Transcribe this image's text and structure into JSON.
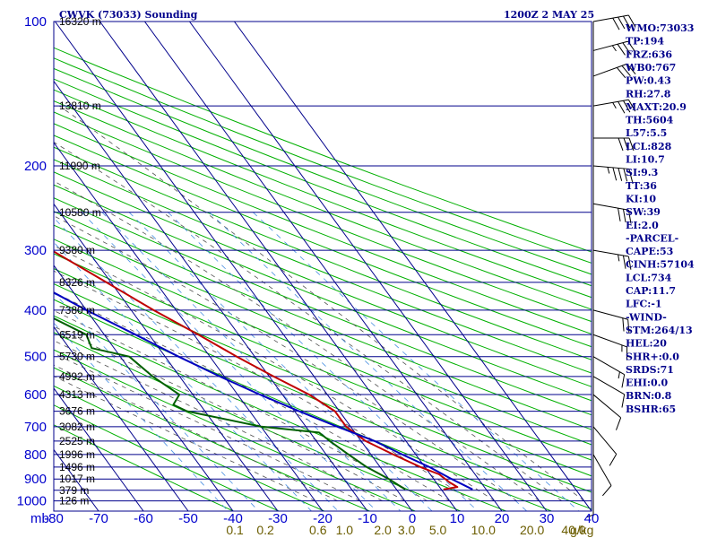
{
  "header": {
    "station": "CWVK (73033) Sounding",
    "time": "1200Z  2 MAY 25"
  },
  "colors": {
    "frame": "#00008b",
    "isotherm": "#00008b",
    "isobar": "#00008b",
    "dry_adiabat": "#00b000",
    "moist_adiabat": "#505050",
    "mixing_ratio": "#4a90e2",
    "temperature": "#c00000",
    "dewpoint": "#006000",
    "parcel": "#0000c0",
    "wind": "#000000"
  },
  "chart_data": {
    "type": "line",
    "xlabel": "",
    "ylabel": "",
    "pressure_unit_label": "mb",
    "mixing_unit_label": "g/kg",
    "x_ticks": [
      -80,
      -70,
      -60,
      -50,
      -40,
      -30,
      -20,
      -10,
      0,
      10,
      20,
      30,
      40
    ],
    "x_tick_labels": [
      "-80",
      "-70",
      "-60",
      "-50",
      "-40",
      "-30",
      "-20",
      "-10",
      "0",
      "10",
      "20",
      "30",
      "40"
    ],
    "pressure_levels": [
      100,
      200,
      300,
      400,
      500,
      600,
      700,
      800,
      900,
      1000
    ],
    "pressure_labels": [
      "100",
      "200",
      "300",
      "400",
      "500",
      "600",
      "700",
      "800",
      "900",
      "1000"
    ],
    "height_levels": [
      {
        "p": 100,
        "label": "16320 m"
      },
      {
        "p": 150,
        "label": "13810 m"
      },
      {
        "p": 200,
        "label": "11990 m"
      },
      {
        "p": 250,
        "label": "10580 m"
      },
      {
        "p": 300,
        "label": "9380 m"
      },
      {
        "p": 350,
        "label": "8326 m"
      },
      {
        "p": 400,
        "label": "7380 m"
      },
      {
        "p": 450,
        "label": "6519 m"
      },
      {
        "p": 500,
        "label": "5730 m"
      },
      {
        "p": 550,
        "label": "4992 m"
      },
      {
        "p": 600,
        "label": "4313 m"
      },
      {
        "p": 650,
        "label": "3676 m"
      },
      {
        "p": 700,
        "label": "3082 m"
      },
      {
        "p": 750,
        "label": "2525 m"
      },
      {
        "p": 800,
        "label": "1996 m"
      },
      {
        "p": 850,
        "label": "1496 m"
      },
      {
        "p": 900,
        "label": "1017 m"
      },
      {
        "p": 950,
        "label": "379 m"
      },
      {
        "p": 1000,
        "label": "126 m"
      }
    ],
    "mixing_ratio_labels": [
      "0.1",
      "0.2",
      "0.6",
      "1.0",
      "2.0",
      "3.0",
      "5.0",
      "10.0",
      "20.0",
      "40.0"
    ],
    "mixing_ratio_values": [
      0.1,
      0.2,
      0.6,
      1.0,
      2.0,
      3.0,
      5.0,
      10.0,
      20.0,
      40.0
    ],
    "series": [
      {
        "key": "temperature",
        "points": [
          [
            946,
            10.5
          ],
          [
            935,
            14
          ],
          [
            915,
            13
          ],
          [
            880,
            12
          ],
          [
            850,
            9
          ],
          [
            800,
            5
          ],
          [
            750,
            1
          ],
          [
            700,
            -1
          ],
          [
            670,
            -1
          ],
          [
            650,
            -1
          ],
          [
            600,
            -4
          ],
          [
            550,
            -9
          ],
          [
            500,
            -14
          ],
          [
            450,
            -19
          ],
          [
            400,
            -25
          ],
          [
            350,
            -31
          ],
          [
            300,
            -38
          ],
          [
            250,
            -47
          ],
          [
            200,
            -54
          ],
          [
            190,
            -55
          ],
          [
            175,
            -52
          ],
          [
            160,
            -50
          ],
          [
            140,
            -53
          ],
          [
            120,
            -57
          ],
          [
            100,
            -58
          ]
        ]
      },
      {
        "key": "dewpoint",
        "points": [
          [
            946,
            2
          ],
          [
            935,
            1.5
          ],
          [
            900,
            0
          ],
          [
            850,
            -3
          ],
          [
            800,
            -5
          ],
          [
            750,
            -7
          ],
          [
            720,
            -8
          ],
          [
            700,
            -20
          ],
          [
            650,
            -34
          ],
          [
            630,
            -36
          ],
          [
            600,
            -33
          ],
          [
            550,
            -36
          ],
          [
            500,
            -38
          ],
          [
            480,
            -45
          ],
          [
            450,
            -44
          ],
          [
            400,
            -51
          ],
          [
            350,
            -53
          ],
          [
            300,
            -57
          ],
          [
            280,
            -57
          ],
          [
            250,
            -63
          ],
          [
            220,
            -65
          ],
          [
            200,
            -68
          ],
          [
            185,
            -72
          ],
          [
            180,
            -75
          ]
        ]
      },
      {
        "key": "parcel",
        "points": [
          [
            946,
            17
          ],
          [
            900,
            14
          ],
          [
            850,
            11
          ],
          [
            800,
            7
          ],
          [
            750,
            3
          ],
          [
            700,
            -3
          ],
          [
            650,
            -9
          ],
          [
            600,
            -15
          ],
          [
            550,
            -21
          ],
          [
            500,
            -27
          ],
          [
            450,
            -33
          ],
          [
            400,
            -40
          ],
          [
            350,
            -47
          ],
          [
            300,
            -55
          ],
          [
            250,
            -64
          ],
          [
            200,
            -75
          ]
        ]
      }
    ],
    "wind_profile": [
      {
        "p": 100,
        "dir": 260,
        "spd": 40
      },
      {
        "p": 115,
        "dir": 255,
        "spd": 35
      },
      {
        "p": 130,
        "dir": 250,
        "spd": 30
      },
      {
        "p": 150,
        "dir": 260,
        "spd": 35
      },
      {
        "p": 175,
        "dir": 270,
        "spd": 30
      },
      {
        "p": 200,
        "dir": 275,
        "spd": 45
      },
      {
        "p": 240,
        "dir": 280,
        "spd": 30
      },
      {
        "p": 300,
        "dir": 280,
        "spd": 25
      },
      {
        "p": 400,
        "dir": 285,
        "spd": 20
      },
      {
        "p": 450,
        "dir": 290,
        "spd": 15
      },
      {
        "p": 500,
        "dir": 300,
        "spd": 15
      },
      {
        "p": 550,
        "dir": 300,
        "spd": 10
      },
      {
        "p": 600,
        "dir": 310,
        "spd": 10
      },
      {
        "p": 700,
        "dir": 320,
        "spd": 10
      },
      {
        "p": 800,
        "dir": 330,
        "spd": 10
      },
      {
        "p": 900,
        "dir": 0,
        "spd": 5
      }
    ]
  },
  "indices": [
    "WMO:73033",
    "TP:194",
    "FRZ:636",
    "WB0:767",
    "PW:0.43",
    "RH:27.8",
    "MAXT:20.9",
    "TH:5604",
    "L57:5.5",
    "LCL:828",
    "LI:10.7",
    "SI:9.3",
    "TT:36",
    "KI:10",
    "SW:39",
    "EI:2.0",
    "-PARCEL-",
    "CAPE:53",
    "CINH:57104",
    "LCL:734",
    "CAP:11.7",
    "LFC:-1",
    "-WIND-",
    "STM:264/13",
    "HEL:20",
    "SHR+:0.0",
    "SRDS:71",
    "EHI:0.0",
    "BRN:0.8",
    "BSHR:65"
  ]
}
